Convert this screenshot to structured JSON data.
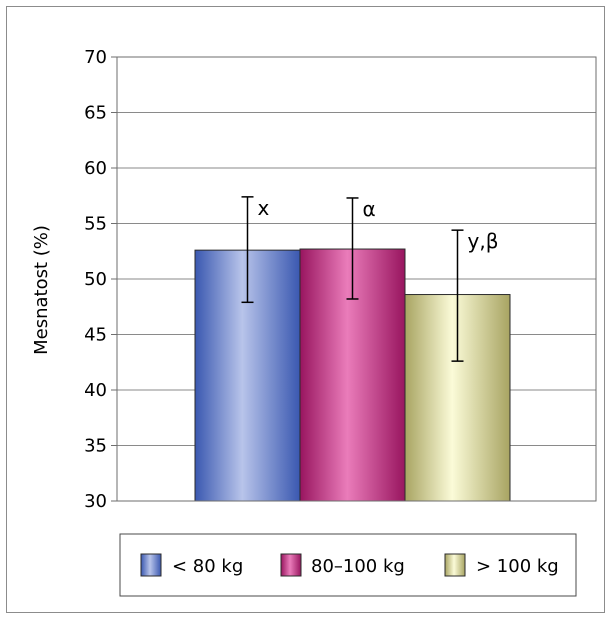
{
  "chart_data": {
    "type": "bar",
    "title": "",
    "xlabel": "",
    "ylabel": "Mesnatost (%)",
    "ylim": [
      30,
      70
    ],
    "yticks": [
      30,
      35,
      40,
      45,
      50,
      55,
      60,
      65,
      70
    ],
    "grid": true,
    "legend_position": "bottom",
    "series": [
      {
        "name": "< 80 kg",
        "value": 52.6,
        "err_low": 47.9,
        "err_high": 57.4,
        "annotation": "x",
        "colors": [
          "#3a58b0",
          "#b8c4ea",
          "#3a58b0"
        ]
      },
      {
        "name": "80–100 kg",
        "value": 52.7,
        "err_low": 48.2,
        "err_high": 57.3,
        "annotation": "α",
        "colors": [
          "#98155f",
          "#ea7cba",
          "#98155f"
        ]
      },
      {
        "name": "> 100 kg",
        "value": 48.6,
        "err_low": 42.6,
        "err_high": 54.4,
        "annotation": "y,β",
        "colors": [
          "#a8a462",
          "#fbfbd8",
          "#a8a462"
        ]
      }
    ]
  }
}
